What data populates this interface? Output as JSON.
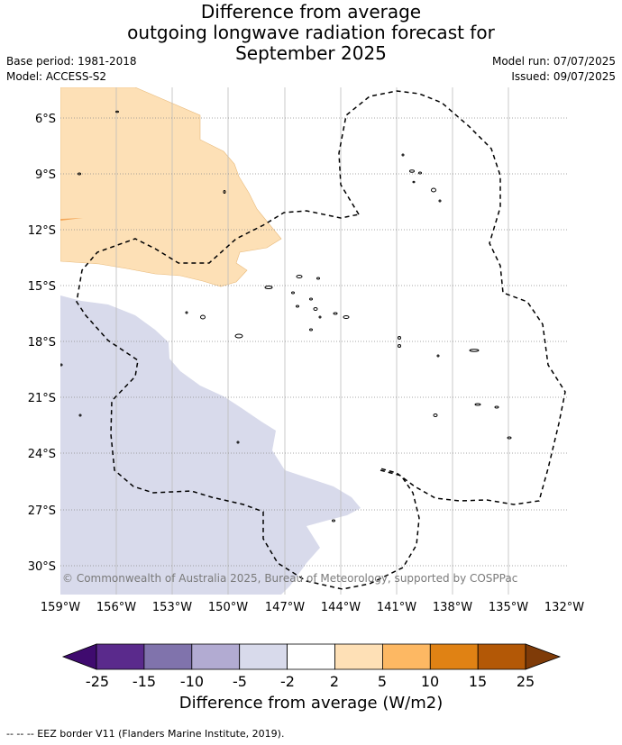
{
  "header": {
    "title_line1": "Difference from average",
    "title_line2": "outgoing longwave radiation forecast for",
    "title_line3": "September 2025",
    "base_period": "Base period: 1981-2018",
    "model": "Model: ACCESS-S2",
    "model_run": "Model run: 07/07/2025",
    "issued": "Issued: 09/07/2025"
  },
  "map": {
    "lat_labels": [
      "6°S",
      "9°S",
      "12°S",
      "15°S",
      "18°S",
      "21°S",
      "24°S",
      "27°S",
      "30°S"
    ],
    "lon_labels": [
      "159°W",
      "156°W",
      "153°W",
      "150°W",
      "147°W",
      "144°W",
      "141°W",
      "138°W",
      "135°W",
      "132°W"
    ],
    "copyright": "© Commonwealth of Australia 2025, Bureau of Meteorology, supported by COSPPac",
    "anomaly_colors": {
      "positive_2_5": "#fde0b6",
      "negative_5_2": "#dadbeb"
    }
  },
  "colorbar": {
    "labels": [
      "-25",
      "-15",
      "-10",
      "-5",
      "-2",
      "2",
      "5",
      "10",
      "15",
      "25"
    ],
    "colors": [
      "#3f0b6f",
      "#5a2a8c",
      "#8073ac",
      "#b2abd2",
      "#d8daeb",
      "#ffffff",
      "#fee0b6",
      "#fdb863",
      "#e08214",
      "#b35806",
      "#7f3b08"
    ],
    "title": "Difference from average (W/m2)"
  },
  "footnote": "--  --  -- EEZ border V11 (Flanders Marine Institute, 2019)."
}
